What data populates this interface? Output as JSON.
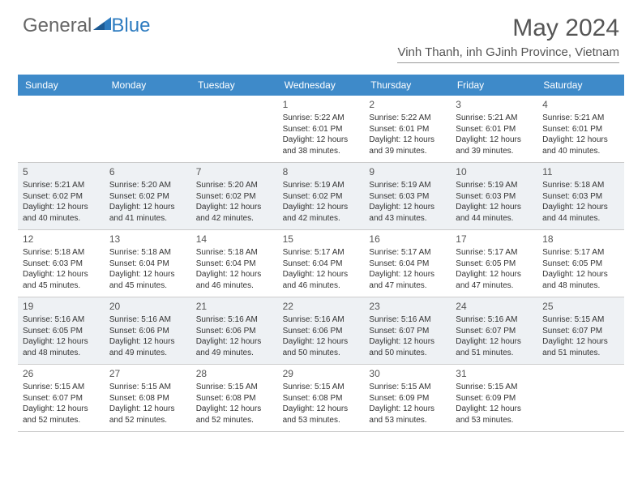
{
  "brand": {
    "part1": "General",
    "part2": "Blue"
  },
  "title": "May 2024",
  "location": "Vinh Thanh, inh GJinh Province, Vietnam",
  "day_names": [
    "Sunday",
    "Monday",
    "Tuesday",
    "Wednesday",
    "Thursday",
    "Friday",
    "Saturday"
  ],
  "colors": {
    "header_bg": "#3e8ac9",
    "shade_bg": "#eef1f4",
    "text": "#333333",
    "title": "#555555"
  },
  "layout": {
    "columns": 7,
    "rows": 5,
    "shaded_rows": [
      1,
      3
    ]
  },
  "weeks": [
    [
      {
        "day": "",
        "lines": []
      },
      {
        "day": "",
        "lines": []
      },
      {
        "day": "",
        "lines": []
      },
      {
        "day": "1",
        "lines": [
          "Sunrise: 5:22 AM",
          "Sunset: 6:01 PM",
          "Daylight: 12 hours",
          "and 38 minutes."
        ]
      },
      {
        "day": "2",
        "lines": [
          "Sunrise: 5:22 AM",
          "Sunset: 6:01 PM",
          "Daylight: 12 hours",
          "and 39 minutes."
        ]
      },
      {
        "day": "3",
        "lines": [
          "Sunrise: 5:21 AM",
          "Sunset: 6:01 PM",
          "Daylight: 12 hours",
          "and 39 minutes."
        ]
      },
      {
        "day": "4",
        "lines": [
          "Sunrise: 5:21 AM",
          "Sunset: 6:01 PM",
          "Daylight: 12 hours",
          "and 40 minutes."
        ]
      }
    ],
    [
      {
        "day": "5",
        "lines": [
          "Sunrise: 5:21 AM",
          "Sunset: 6:02 PM",
          "Daylight: 12 hours",
          "and 40 minutes."
        ]
      },
      {
        "day": "6",
        "lines": [
          "Sunrise: 5:20 AM",
          "Sunset: 6:02 PM",
          "Daylight: 12 hours",
          "and 41 minutes."
        ]
      },
      {
        "day": "7",
        "lines": [
          "Sunrise: 5:20 AM",
          "Sunset: 6:02 PM",
          "Daylight: 12 hours",
          "and 42 minutes."
        ]
      },
      {
        "day": "8",
        "lines": [
          "Sunrise: 5:19 AM",
          "Sunset: 6:02 PM",
          "Daylight: 12 hours",
          "and 42 minutes."
        ]
      },
      {
        "day": "9",
        "lines": [
          "Sunrise: 5:19 AM",
          "Sunset: 6:03 PM",
          "Daylight: 12 hours",
          "and 43 minutes."
        ]
      },
      {
        "day": "10",
        "lines": [
          "Sunrise: 5:19 AM",
          "Sunset: 6:03 PM",
          "Daylight: 12 hours",
          "and 44 minutes."
        ]
      },
      {
        "day": "11",
        "lines": [
          "Sunrise: 5:18 AM",
          "Sunset: 6:03 PM",
          "Daylight: 12 hours",
          "and 44 minutes."
        ]
      }
    ],
    [
      {
        "day": "12",
        "lines": [
          "Sunrise: 5:18 AM",
          "Sunset: 6:03 PM",
          "Daylight: 12 hours",
          "and 45 minutes."
        ]
      },
      {
        "day": "13",
        "lines": [
          "Sunrise: 5:18 AM",
          "Sunset: 6:04 PM",
          "Daylight: 12 hours",
          "and 45 minutes."
        ]
      },
      {
        "day": "14",
        "lines": [
          "Sunrise: 5:18 AM",
          "Sunset: 6:04 PM",
          "Daylight: 12 hours",
          "and 46 minutes."
        ]
      },
      {
        "day": "15",
        "lines": [
          "Sunrise: 5:17 AM",
          "Sunset: 6:04 PM",
          "Daylight: 12 hours",
          "and 46 minutes."
        ]
      },
      {
        "day": "16",
        "lines": [
          "Sunrise: 5:17 AM",
          "Sunset: 6:04 PM",
          "Daylight: 12 hours",
          "and 47 minutes."
        ]
      },
      {
        "day": "17",
        "lines": [
          "Sunrise: 5:17 AM",
          "Sunset: 6:05 PM",
          "Daylight: 12 hours",
          "and 47 minutes."
        ]
      },
      {
        "day": "18",
        "lines": [
          "Sunrise: 5:17 AM",
          "Sunset: 6:05 PM",
          "Daylight: 12 hours",
          "and 48 minutes."
        ]
      }
    ],
    [
      {
        "day": "19",
        "lines": [
          "Sunrise: 5:16 AM",
          "Sunset: 6:05 PM",
          "Daylight: 12 hours",
          "and 48 minutes."
        ]
      },
      {
        "day": "20",
        "lines": [
          "Sunrise: 5:16 AM",
          "Sunset: 6:06 PM",
          "Daylight: 12 hours",
          "and 49 minutes."
        ]
      },
      {
        "day": "21",
        "lines": [
          "Sunrise: 5:16 AM",
          "Sunset: 6:06 PM",
          "Daylight: 12 hours",
          "and 49 minutes."
        ]
      },
      {
        "day": "22",
        "lines": [
          "Sunrise: 5:16 AM",
          "Sunset: 6:06 PM",
          "Daylight: 12 hours",
          "and 50 minutes."
        ]
      },
      {
        "day": "23",
        "lines": [
          "Sunrise: 5:16 AM",
          "Sunset: 6:07 PM",
          "Daylight: 12 hours",
          "and 50 minutes."
        ]
      },
      {
        "day": "24",
        "lines": [
          "Sunrise: 5:16 AM",
          "Sunset: 6:07 PM",
          "Daylight: 12 hours",
          "and 51 minutes."
        ]
      },
      {
        "day": "25",
        "lines": [
          "Sunrise: 5:15 AM",
          "Sunset: 6:07 PM",
          "Daylight: 12 hours",
          "and 51 minutes."
        ]
      }
    ],
    [
      {
        "day": "26",
        "lines": [
          "Sunrise: 5:15 AM",
          "Sunset: 6:07 PM",
          "Daylight: 12 hours",
          "and 52 minutes."
        ]
      },
      {
        "day": "27",
        "lines": [
          "Sunrise: 5:15 AM",
          "Sunset: 6:08 PM",
          "Daylight: 12 hours",
          "and 52 minutes."
        ]
      },
      {
        "day": "28",
        "lines": [
          "Sunrise: 5:15 AM",
          "Sunset: 6:08 PM",
          "Daylight: 12 hours",
          "and 52 minutes."
        ]
      },
      {
        "day": "29",
        "lines": [
          "Sunrise: 5:15 AM",
          "Sunset: 6:08 PM",
          "Daylight: 12 hours",
          "and 53 minutes."
        ]
      },
      {
        "day": "30",
        "lines": [
          "Sunrise: 5:15 AM",
          "Sunset: 6:09 PM",
          "Daylight: 12 hours",
          "and 53 minutes."
        ]
      },
      {
        "day": "31",
        "lines": [
          "Sunrise: 5:15 AM",
          "Sunset: 6:09 PM",
          "Daylight: 12 hours",
          "and 53 minutes."
        ]
      },
      {
        "day": "",
        "lines": []
      }
    ]
  ]
}
